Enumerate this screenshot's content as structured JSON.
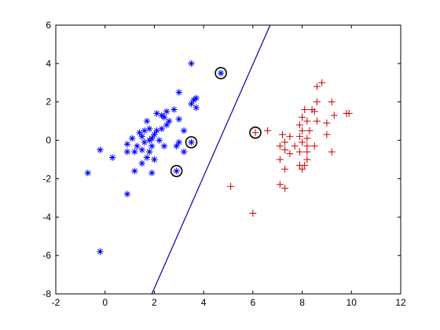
{
  "chart_data": {
    "type": "scatter",
    "title": "",
    "xlabel": "",
    "ylabel": "",
    "xlim": [
      -2,
      12
    ],
    "ylim": [
      -8,
      6
    ],
    "xticks": [
      "-2",
      "0",
      "2",
      "4",
      "6",
      "8",
      "10",
      "12"
    ],
    "yticks": [
      "-8",
      "-6",
      "-4",
      "-2",
      "0",
      "2",
      "4",
      "6"
    ],
    "grid": false,
    "legend": "none",
    "series": [
      {
        "marker": "asterisk",
        "color": "#0000ff",
        "points": [
          [
            3.5,
            4.0
          ],
          [
            3.6,
            2.1
          ],
          [
            3.7,
            2.2
          ],
          [
            3.5,
            1.9
          ],
          [
            3.7,
            1.7
          ],
          [
            3.0,
            2.5
          ],
          [
            2.8,
            1.6
          ],
          [
            2.3,
            1.3
          ],
          [
            2.5,
            1.5
          ],
          [
            2.1,
            1.4
          ],
          [
            2.4,
            1.2
          ],
          [
            1.7,
            1.0
          ],
          [
            2.6,
            1.0
          ],
          [
            2.5,
            0.8
          ],
          [
            2.3,
            0.6
          ],
          [
            2.1,
            0.5
          ],
          [
            1.8,
            0.6
          ],
          [
            1.6,
            0.5
          ],
          [
            1.4,
            0.4
          ],
          [
            2.0,
            0.3
          ],
          [
            1.5,
            0.2
          ],
          [
            2.2,
            0.0
          ],
          [
            1.8,
            0.0
          ],
          [
            1.6,
            -0.1
          ],
          [
            1.3,
            -0.3
          ],
          [
            1.1,
            0.1
          ],
          [
            0.9,
            -0.2
          ],
          [
            1.9,
            -0.3
          ],
          [
            1.5,
            -0.5
          ],
          [
            1.8,
            -0.6
          ],
          [
            1.2,
            -0.6
          ],
          [
            0.9,
            -0.6
          ],
          [
            1.7,
            -0.9
          ],
          [
            1.5,
            -1.2
          ],
          [
            1.2,
            -1.6
          ],
          [
            0.3,
            -0.9
          ],
          [
            -0.2,
            -0.5
          ],
          [
            1.9,
            -1.7
          ],
          [
            0.9,
            -2.8
          ],
          [
            -0.7,
            -1.7
          ],
          [
            -0.2,
            -5.8
          ],
          [
            3.0,
            1.1
          ],
          [
            3.2,
            0.5
          ],
          [
            3.0,
            -0.1
          ],
          [
            3.2,
            -0.6
          ],
          [
            2.9,
            -0.3
          ],
          [
            2.4,
            -0.3
          ],
          [
            2.0,
            -1.0
          ],
          [
            3.5,
            -0.1
          ],
          [
            2.9,
            -1.6
          ],
          [
            4.7,
            3.5
          ],
          [
            1.9,
            0.1
          ]
        ]
      },
      {
        "marker": "plus",
        "color": "#cc0000",
        "points": [
          [
            8.8,
            3.0
          ],
          [
            8.6,
            2.8
          ],
          [
            8.6,
            2.0
          ],
          [
            9.2,
            2.0
          ],
          [
            8.1,
            1.6
          ],
          [
            8.4,
            1.6
          ],
          [
            8.5,
            1.5
          ],
          [
            8.0,
            1.2
          ],
          [
            9.8,
            1.4
          ],
          [
            9.9,
            1.4
          ],
          [
            9.3,
            1.3
          ],
          [
            8.2,
            1.0
          ],
          [
            8.6,
            1.0
          ],
          [
            7.9,
            0.8
          ],
          [
            9.0,
            0.9
          ],
          [
            8.3,
            0.5
          ],
          [
            8.0,
            0.5
          ],
          [
            6.6,
            0.5
          ],
          [
            7.2,
            0.3
          ],
          [
            7.5,
            0.2
          ],
          [
            7.9,
            0.2
          ],
          [
            8.2,
            0.1
          ],
          [
            9.0,
            0.3
          ],
          [
            7.3,
            -0.1
          ],
          [
            8.0,
            -0.1
          ],
          [
            7.7,
            -0.3
          ],
          [
            8.2,
            -0.3
          ],
          [
            8.5,
            -0.3
          ],
          [
            7.1,
            -0.3
          ],
          [
            7.3,
            -0.5
          ],
          [
            8.2,
            -0.6
          ],
          [
            7.9,
            -0.6
          ],
          [
            9.2,
            -0.6
          ],
          [
            7.5,
            -0.7
          ],
          [
            7.1,
            -1.0
          ],
          [
            8.2,
            -1.0
          ],
          [
            7.3,
            -1.5
          ],
          [
            7.9,
            -1.3
          ],
          [
            8.1,
            -1.3
          ],
          [
            8.0,
            -1.5
          ],
          [
            7.1,
            -2.3
          ],
          [
            7.3,
            -2.5
          ],
          [
            5.1,
            -2.4
          ],
          [
            6.0,
            -3.8
          ],
          [
            6.1,
            0.4
          ]
        ]
      }
    ],
    "decision_boundary": {
      "color": "#0000aa",
      "x": [
        1.9,
        6.7
      ],
      "y": [
        -8,
        6
      ]
    },
    "highlighted_points": [
      [
        4.7,
        3.5
      ],
      [
        3.5,
        -0.1
      ],
      [
        2.9,
        -1.6
      ],
      [
        6.1,
        0.4
      ]
    ]
  }
}
